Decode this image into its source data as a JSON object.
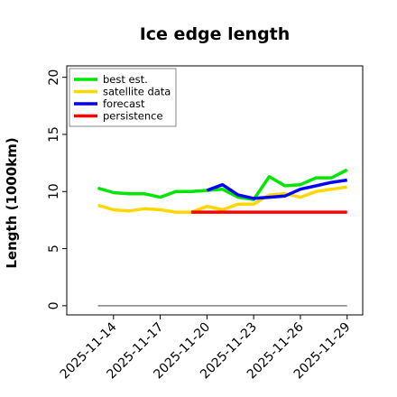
{
  "chart_data": {
    "type": "line",
    "title": "Ice edge length",
    "ylabel": "Length (1000km)",
    "xlabel": "",
    "ylim": [
      -0.8,
      21
    ],
    "yticks": [
      0,
      5,
      10,
      15,
      20
    ],
    "xlim": [
      "2025-11-11",
      "2025-11-30"
    ],
    "xticks": [
      "2025-11-14",
      "2025-11-17",
      "2025-11-20",
      "2025-11-23",
      "2025-11-26",
      "2025-11-29"
    ],
    "highlighted_xtick": "2025-11-20",
    "highlight_color": "#228B22",
    "grid": false,
    "legend": {
      "position": "top-left",
      "entries": [
        "best est.",
        "satellite data",
        "forecast",
        "persistence"
      ]
    },
    "series": [
      {
        "name": "best est.",
        "color": "#00e600",
        "points": [
          [
            "2025-11-13",
            10.3
          ],
          [
            "2025-11-14",
            9.9
          ],
          [
            "2025-11-15",
            9.8
          ],
          [
            "2025-11-16",
            9.8
          ],
          [
            "2025-11-17",
            9.5
          ],
          [
            "2025-11-18",
            10.0
          ],
          [
            "2025-11-19",
            10.0
          ],
          [
            "2025-11-20",
            10.1
          ],
          [
            "2025-11-21",
            10.2
          ],
          [
            "2025-11-22",
            9.5
          ],
          [
            "2025-11-23",
            9.3
          ],
          [
            "2025-11-24",
            11.3
          ],
          [
            "2025-11-25",
            10.5
          ],
          [
            "2025-11-26",
            10.6
          ],
          [
            "2025-11-27",
            11.2
          ],
          [
            "2025-11-28",
            11.2
          ],
          [
            "2025-11-29",
            11.9
          ]
        ]
      },
      {
        "name": "satellite data",
        "color": "#ffd700",
        "points": [
          [
            "2025-11-13",
            8.8
          ],
          [
            "2025-11-14",
            8.4
          ],
          [
            "2025-11-15",
            8.3
          ],
          [
            "2025-11-16",
            8.5
          ],
          [
            "2025-11-17",
            8.4
          ],
          [
            "2025-11-18",
            8.2
          ],
          [
            "2025-11-19",
            8.2
          ],
          [
            "2025-11-20",
            8.7
          ],
          [
            "2025-11-21",
            8.4
          ],
          [
            "2025-11-22",
            8.9
          ],
          [
            "2025-11-23",
            8.9
          ],
          [
            "2025-11-24",
            9.7
          ],
          [
            "2025-11-25",
            9.8
          ],
          [
            "2025-11-26",
            9.5
          ],
          [
            "2025-11-27",
            10.0
          ],
          [
            "2025-11-28",
            10.2
          ],
          [
            "2025-11-29",
            10.4
          ]
        ]
      },
      {
        "name": "forecast",
        "color": "#0000ff",
        "points": [
          [
            "2025-11-20",
            10.1
          ],
          [
            "2025-11-21",
            10.6
          ],
          [
            "2025-11-22",
            9.7
          ],
          [
            "2025-11-23",
            9.4
          ],
          [
            "2025-11-24",
            9.5
          ],
          [
            "2025-11-25",
            9.6
          ],
          [
            "2025-11-26",
            10.2
          ],
          [
            "2025-11-27",
            10.5
          ],
          [
            "2025-11-28",
            10.8
          ],
          [
            "2025-11-29",
            11.0
          ]
        ]
      },
      {
        "name": "persistence",
        "color": "#ff0000",
        "points": [
          [
            "2025-11-19",
            8.2
          ],
          [
            "2025-11-29",
            8.2
          ]
        ]
      },
      {
        "name": "",
        "color": "#808080",
        "points": [
          [
            "2025-11-13",
            0
          ],
          [
            "2025-11-29",
            0
          ]
        ]
      }
    ]
  }
}
